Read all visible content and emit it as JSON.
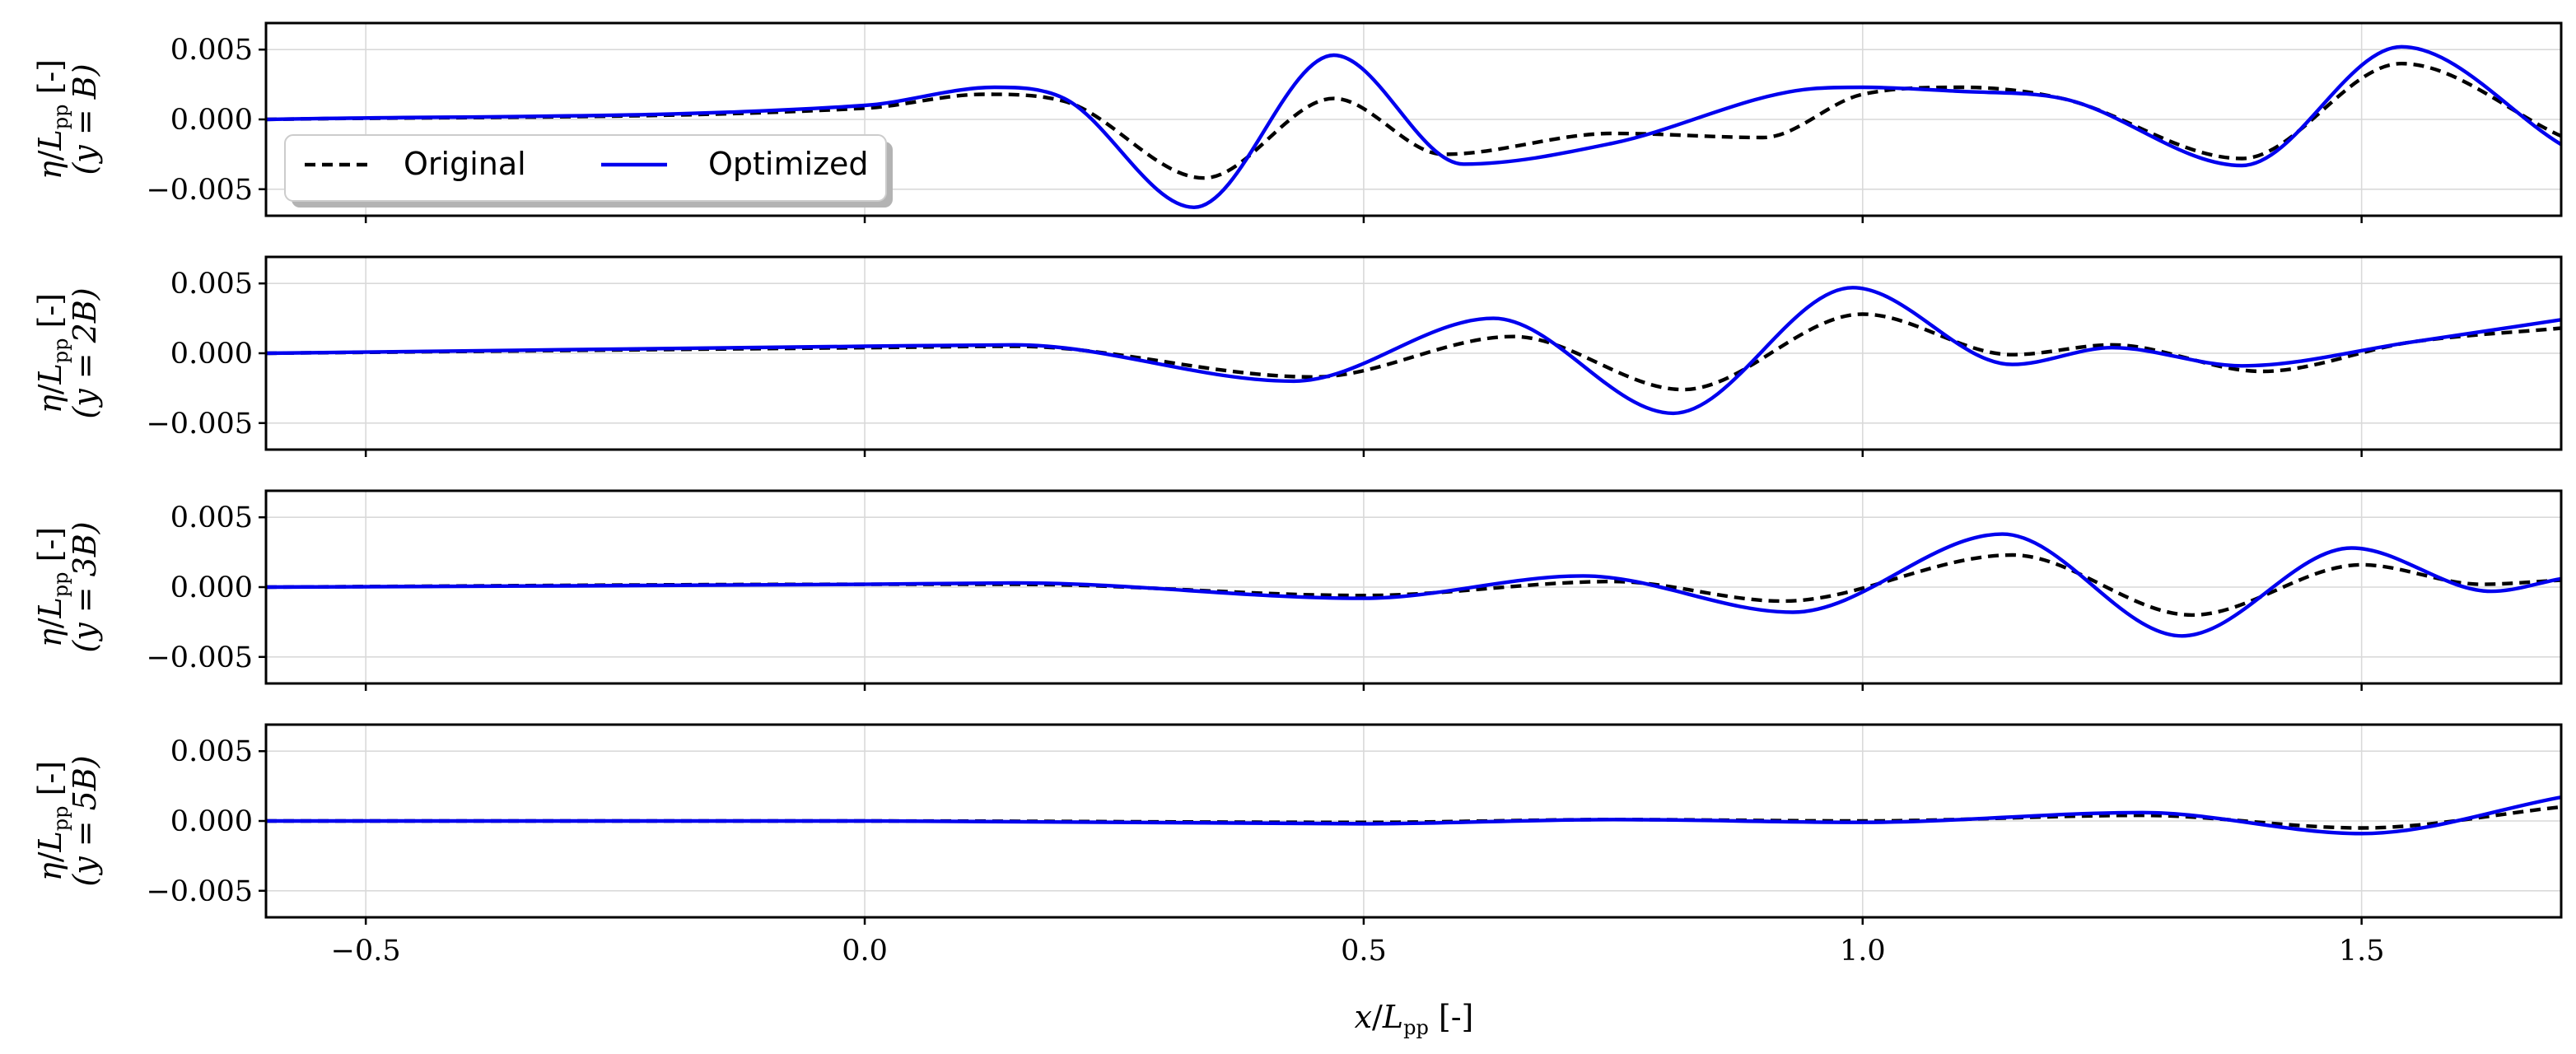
{
  "chart_data": [
    {
      "type": "line",
      "ylabel_main": "η/L_pp [-]",
      "ylabel_sub": "(y = B)",
      "xlim": [
        -0.6,
        1.7
      ],
      "ylim": [
        -0.0069,
        0.0069
      ],
      "yticks": [
        "0.005",
        "0.000",
        "−0.005"
      ],
      "ytick_values": [
        0.005,
        0,
        -0.005
      ],
      "grid": true,
      "legend": "lower-left",
      "series": [
        {
          "name": "Original",
          "style": "dashed",
          "color": "#000000",
          "x": [
            -0.6,
            0.0,
            0.12,
            0.2,
            0.34,
            0.47,
            0.58,
            0.75,
            0.9,
            1.0,
            1.1,
            1.2,
            1.38,
            1.54,
            1.7
          ],
          "y": [
            0.0,
            0.0008,
            0.0018,
            0.0013,
            -0.0042,
            0.0015,
            -0.0025,
            -0.001,
            -0.0013,
            0.0018,
            0.0023,
            0.0015,
            -0.0028,
            0.004,
            -0.0012
          ]
        },
        {
          "name": "Optimized",
          "style": "solid",
          "color": "#0000ee",
          "x": [
            -0.6,
            0.0,
            0.13,
            0.2,
            0.33,
            0.47,
            0.6,
            0.75,
            0.95,
            1.0,
            1.1,
            1.2,
            1.38,
            1.54,
            1.7
          ],
          "y": [
            0.0,
            0.001,
            0.0023,
            0.0015,
            -0.0063,
            0.0046,
            -0.0032,
            -0.0017,
            0.0022,
            0.0023,
            0.002,
            0.0015,
            -0.0033,
            0.0052,
            -0.0018
          ]
        }
      ]
    },
    {
      "type": "line",
      "ylabel_main": "η/L_pp [-]",
      "ylabel_sub": "(y = 2B)",
      "xlim": [
        -0.6,
        1.7
      ],
      "ylim": [
        -0.0069,
        0.0069
      ],
      "yticks": [
        "0.005",
        "0.000",
        "−0.005"
      ],
      "ytick_values": [
        0.005,
        0,
        -0.005
      ],
      "grid": true,
      "series": [
        {
          "name": "Original",
          "style": "dashed",
          "color": "#000000",
          "x": [
            -0.6,
            0.0,
            0.15,
            0.45,
            0.65,
            0.82,
            1.0,
            1.15,
            1.25,
            1.4,
            1.55,
            1.7
          ],
          "y": [
            0.0,
            0.0004,
            0.0005,
            -0.0017,
            0.0012,
            -0.0026,
            0.0028,
            -0.0001,
            0.0006,
            -0.0013,
            0.0008,
            0.0018
          ]
        },
        {
          "name": "Optimized",
          "style": "solid",
          "color": "#0000ee",
          "x": [
            -0.6,
            0.0,
            0.15,
            0.43,
            0.63,
            0.81,
            0.99,
            1.15,
            1.25,
            1.38,
            1.55,
            1.7
          ],
          "y": [
            0.0,
            0.0005,
            0.0006,
            -0.002,
            0.0025,
            -0.0043,
            0.0047,
            -0.0008,
            0.0004,
            -0.0009,
            0.0008,
            0.0024
          ]
        }
      ]
    },
    {
      "type": "line",
      "ylabel_main": "η/L_pp [-]",
      "ylabel_sub": "(y = 3B)",
      "xlim": [
        -0.6,
        1.7
      ],
      "ylim": [
        -0.0069,
        0.0069
      ],
      "yticks": [
        "0.005",
        "0.000",
        "−0.005"
      ],
      "ytick_values": [
        0.005,
        0,
        -0.005
      ],
      "grid": true,
      "series": [
        {
          "name": "Original",
          "style": "dashed",
          "color": "#000000",
          "x": [
            -0.6,
            0.0,
            0.15,
            0.5,
            0.75,
            0.92,
            1.15,
            1.33,
            1.5,
            1.62,
            1.7
          ],
          "y": [
            0.0,
            0.0002,
            0.0002,
            -0.0006,
            0.0004,
            -0.001,
            0.0023,
            -0.002,
            0.0016,
            0.0002,
            0.0005
          ]
        },
        {
          "name": "Optimized",
          "style": "solid",
          "color": "#0000ee",
          "x": [
            -0.6,
            0.0,
            0.15,
            0.5,
            0.72,
            0.93,
            1.14,
            1.32,
            1.49,
            1.63,
            1.7
          ],
          "y": [
            0.0,
            0.0002,
            0.0003,
            -0.0008,
            0.0008,
            -0.0018,
            0.0038,
            -0.0035,
            0.0028,
            -0.0003,
            0.0006
          ]
        }
      ]
    },
    {
      "type": "line",
      "ylabel_main": "η/L_pp [-]",
      "ylabel_sub": "(y = 5B)",
      "xlim": [
        -0.6,
        1.7
      ],
      "ylim": [
        -0.0069,
        0.0069
      ],
      "yticks": [
        "0.005",
        "0.000",
        "−0.005"
      ],
      "ytick_values": [
        0.005,
        0,
        -0.005
      ],
      "grid": true,
      "series": [
        {
          "name": "Original",
          "style": "dashed",
          "color": "#000000",
          "x": [
            -0.6,
            0.0,
            0.5,
            0.75,
            1.0,
            1.28,
            1.5,
            1.7
          ],
          "y": [
            0.0,
            0.0,
            -0.0001,
            0.0001,
            0.0,
            0.0004,
            -0.0005,
            0.001
          ]
        },
        {
          "name": "Optimized",
          "style": "solid",
          "color": "#0000ee",
          "x": [
            -0.6,
            0.0,
            0.5,
            0.75,
            1.0,
            1.28,
            1.5,
            1.7
          ],
          "y": [
            0.0,
            0.0,
            -0.0002,
            0.0001,
            -0.0001,
            0.0006,
            -0.0009,
            0.0017
          ]
        }
      ]
    }
  ],
  "xaxis": {
    "label": "x/L_pp [-]",
    "ticks": [
      "−0.5",
      "0.0",
      "0.5",
      "1.0",
      "1.5"
    ],
    "tick_values": [
      -0.5,
      0.0,
      0.5,
      1.0,
      1.5
    ]
  },
  "legend": {
    "entries": [
      {
        "label": "Original",
        "style": "dashed",
        "color": "#000000"
      },
      {
        "label": "Optimized",
        "style": "solid",
        "color": "#0000ee"
      }
    ]
  }
}
